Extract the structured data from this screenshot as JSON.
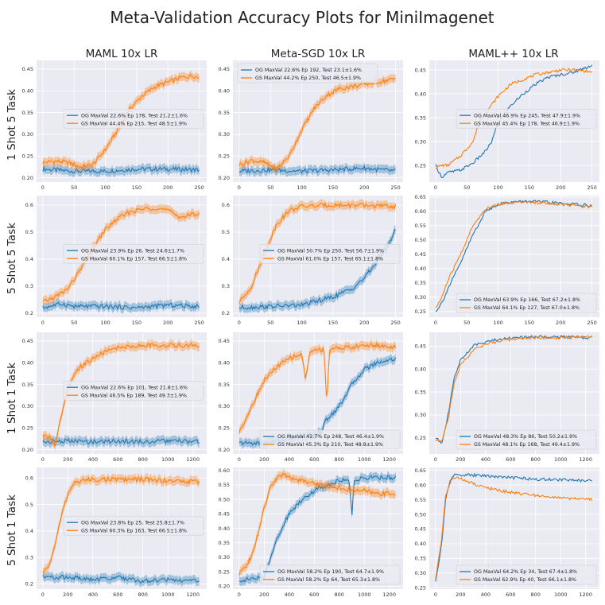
{
  "figure": {
    "suptitle": "Meta-Validation Accuracy Plots for MiniImagenet",
    "columns": [
      "MAML 10x LR",
      "Meta-SGD 10x LR",
      "MAML++ 10x LR"
    ],
    "rows": [
      "1 Shot 5 Task",
      "5 Shot 5 Task",
      "1 Shot 1 Task",
      "5 Shot 1 Task"
    ],
    "colors": {
      "og": "#1f77b4",
      "gs": "#ff7f0e",
      "panel_bg": "#eaeaf2",
      "grid": "#ffffff"
    }
  },
  "chart_data": [
    {
      "type": "line",
      "row": 0,
      "col": 0,
      "xlim": [
        -10,
        262
      ],
      "ylim": [
        0.19,
        0.47
      ],
      "xticks": [
        0,
        50,
        100,
        150,
        200,
        250
      ],
      "yticks": [
        0.2,
        0.25,
        0.3,
        0.35,
        0.4,
        0.45
      ],
      "band": true,
      "legend": "center-right",
      "series": [
        {
          "name": "OG MaxVal 22.6% Ep 178, Test 21.2±1.6%",
          "color": "#1f77b4",
          "x": [
            0,
            50,
            100,
            150,
            200,
            250
          ],
          "y": [
            0.22,
            0.215,
            0.215,
            0.22,
            0.22,
            0.218
          ]
        },
        {
          "name": "GS MaxVal 44.4% Ep 215, Test 48.5±1.9%",
          "color": "#ff7f0e",
          "x": [
            0,
            20,
            40,
            60,
            80,
            100,
            120,
            140,
            160,
            180,
            200,
            220,
            240,
            250
          ],
          "y": [
            0.235,
            0.238,
            0.235,
            0.225,
            0.23,
            0.265,
            0.31,
            0.36,
            0.39,
            0.41,
            0.42,
            0.43,
            0.435,
            0.43
          ]
        }
      ]
    },
    {
      "type": "line",
      "row": 0,
      "col": 1,
      "xlim": [
        -10,
        262
      ],
      "ylim": [
        0.19,
        0.47
      ],
      "xticks": [
        0,
        50,
        100,
        150,
        200,
        250
      ],
      "yticks": [
        0.2,
        0.25,
        0.3,
        0.35,
        0.4,
        0.45
      ],
      "band": true,
      "legend": "top-left",
      "series": [
        {
          "name": "OG MaxVal 22.6% Ep 192, Test 23.1±1.6%",
          "color": "#1f77b4",
          "x": [
            0,
            50,
            100,
            150,
            200,
            250
          ],
          "y": [
            0.215,
            0.218,
            0.215,
            0.218,
            0.222,
            0.215
          ]
        },
        {
          "name": "GS MaxVal 44.2% Ep 250, Test 46.5±1.9%",
          "color": "#ff7f0e",
          "x": [
            0,
            20,
            40,
            60,
            80,
            100,
            120,
            140,
            160,
            180,
            200,
            220,
            240,
            250
          ],
          "y": [
            0.23,
            0.24,
            0.235,
            0.22,
            0.25,
            0.31,
            0.36,
            0.39,
            0.405,
            0.41,
            0.415,
            0.42,
            0.425,
            0.428
          ]
        }
      ]
    },
    {
      "type": "line",
      "row": 0,
      "col": 2,
      "xlim": [
        -10,
        262
      ],
      "ylim": [
        0.215,
        0.47
      ],
      "xticks": [
        0,
        50,
        100,
        150,
        200,
        250
      ],
      "yticks": [
        0.25,
        0.3,
        0.35,
        0.4,
        0.45
      ],
      "band": false,
      "legend": "center-right",
      "series": [
        {
          "name": "OG MaxVal 46.9% Ep 245, Test 47.9±1.9%",
          "color": "#1f77b4",
          "x": [
            0,
            10,
            20,
            40,
            60,
            80,
            90,
            100,
            120,
            140,
            160,
            180,
            200,
            220,
            240,
            250
          ],
          "y": [
            0.25,
            0.225,
            0.235,
            0.24,
            0.255,
            0.28,
            0.3,
            0.34,
            0.375,
            0.4,
            0.42,
            0.435,
            0.44,
            0.445,
            0.455,
            0.46
          ]
        },
        {
          "name": "GS MaxVal 45.4% Ep 178, Test 46.9±1.9%",
          "color": "#ff7f0e",
          "x": [
            0,
            10,
            20,
            40,
            60,
            70,
            80,
            100,
            120,
            140,
            160,
            180,
            200,
            220,
            240,
            250
          ],
          "y": [
            0.245,
            0.25,
            0.25,
            0.27,
            0.3,
            0.34,
            0.36,
            0.395,
            0.42,
            0.43,
            0.44,
            0.445,
            0.45,
            0.45,
            0.448,
            0.445
          ]
        }
      ]
    },
    {
      "type": "line",
      "row": 1,
      "col": 0,
      "xlim": [
        -10,
        262
      ],
      "ylim": [
        0.185,
        0.635
      ],
      "xticks": [
        0,
        50,
        100,
        150,
        200,
        250
      ],
      "yticks": [
        0.2,
        0.3,
        0.4,
        0.5,
        0.6
      ],
      "band": true,
      "legend": "center-right",
      "series": [
        {
          "name": "OG MaxVal 23.9% Ep 26, Test 24.6±1.7%",
          "color": "#1f77b4",
          "x": [
            0,
            30,
            50,
            100,
            150,
            200,
            250
          ],
          "y": [
            0.22,
            0.235,
            0.225,
            0.225,
            0.22,
            0.23,
            0.225
          ]
        },
        {
          "name": "GS MaxVal 60.1% Ep 157, Test 66.5±1.8%",
          "color": "#ff7f0e",
          "x": [
            0,
            20,
            40,
            60,
            80,
            100,
            120,
            140,
            160,
            180,
            200,
            220,
            240,
            250
          ],
          "y": [
            0.24,
            0.26,
            0.29,
            0.36,
            0.44,
            0.51,
            0.55,
            0.575,
            0.585,
            0.59,
            0.58,
            0.555,
            0.565,
            0.57
          ]
        }
      ]
    },
    {
      "type": "line",
      "row": 1,
      "col": 1,
      "xlim": [
        -10,
        262
      ],
      "ylim": [
        0.185,
        0.635
      ],
      "xticks": [
        0,
        50,
        100,
        150,
        200,
        250
      ],
      "yticks": [
        0.2,
        0.3,
        0.4,
        0.5,
        0.6
      ],
      "band": true,
      "legend": "center-right",
      "series": [
        {
          "name": "OG MaxVal 50.7% Ep 250, Test 56.7±1.9%",
          "color": "#1f77b4",
          "x": [
            0,
            50,
            100,
            150,
            180,
            200,
            220,
            240,
            250
          ],
          "y": [
            0.22,
            0.225,
            0.23,
            0.26,
            0.29,
            0.33,
            0.39,
            0.46,
            0.51
          ]
        },
        {
          "name": "GS MaxVal 61.0% Ep 157, Test 65.1±1.8%",
          "color": "#ff7f0e",
          "x": [
            0,
            20,
            40,
            60,
            80,
            100,
            150,
            200,
            250
          ],
          "y": [
            0.24,
            0.3,
            0.42,
            0.53,
            0.58,
            0.595,
            0.6,
            0.598,
            0.595
          ]
        }
      ]
    },
    {
      "type": "line",
      "row": 1,
      "col": 2,
      "xlim": [
        -10,
        262
      ],
      "ylim": [
        0.23,
        0.655
      ],
      "xticks": [
        0,
        50,
        100,
        150,
        200,
        250
      ],
      "yticks": [
        0.25,
        0.3,
        0.35,
        0.4,
        0.45,
        0.5,
        0.55,
        0.6,
        0.65
      ],
      "band": false,
      "legend": "bottom-right",
      "series": [
        {
          "name": "OG MaxVal 63.9% Ep 166, Test 67.2±1.8%",
          "color": "#1f77b4",
          "x": [
            0,
            10,
            20,
            40,
            60,
            80,
            100,
            120,
            150,
            200,
            250
          ],
          "y": [
            0.25,
            0.28,
            0.33,
            0.42,
            0.52,
            0.6,
            0.625,
            0.632,
            0.635,
            0.628,
            0.62
          ]
        },
        {
          "name": "GS MaxVal 64.1% Ep 127, Test 67.0±1.8%",
          "color": "#ff7f0e",
          "x": [
            0,
            10,
            20,
            40,
            60,
            80,
            100,
            120,
            150,
            200,
            250
          ],
          "y": [
            0.26,
            0.3,
            0.36,
            0.45,
            0.55,
            0.61,
            0.625,
            0.63,
            0.632,
            0.625,
            0.615
          ]
        }
      ]
    },
    {
      "type": "line",
      "row": 2,
      "col": 0,
      "xlim": [
        -50,
        1310
      ],
      "ylim": [
        0.19,
        0.47
      ],
      "xticks": [
        0,
        200,
        400,
        600,
        800,
        1000,
        1200
      ],
      "yticks": [
        0.2,
        0.25,
        0.3,
        0.35,
        0.4,
        0.45
      ],
      "band": true,
      "legend": "center-right",
      "series": [
        {
          "name": "OG MaxVal 22.6% Ep 101, Test 21.8±1.6%",
          "color": "#1f77b4",
          "x": [
            0,
            200,
            400,
            600,
            800,
            1000,
            1250
          ],
          "y": [
            0.218,
            0.22,
            0.218,
            0.22,
            0.218,
            0.22,
            0.218
          ]
        },
        {
          "name": "GS MaxVal 46.5% Ep 189, Test 49.3±1.9%",
          "color": "#ff7f0e",
          "x": [
            0,
            50,
            100,
            150,
            200,
            250,
            300,
            400,
            500,
            600,
            800,
            1000,
            1250
          ],
          "y": [
            0.23,
            0.23,
            0.21,
            0.28,
            0.34,
            0.37,
            0.39,
            0.41,
            0.425,
            0.435,
            0.44,
            0.44,
            0.44
          ]
        }
      ]
    },
    {
      "type": "line",
      "row": 2,
      "col": 1,
      "xlim": [
        -50,
        1310
      ],
      "ylim": [
        0.19,
        0.47
      ],
      "xticks": [
        0,
        200,
        400,
        600,
        800,
        1000,
        1200
      ],
      "yticks": [
        0.2,
        0.25,
        0.3,
        0.35,
        0.4,
        0.45
      ],
      "band": true,
      "legend": "bottom-right",
      "series": [
        {
          "name": "OG MaxVal 42.7% Ep 248, Test 46.4±1.9%",
          "color": "#1f77b4",
          "x": [
            0,
            200,
            400,
            600,
            650,
            700,
            800,
            900,
            1000,
            1100,
            1250
          ],
          "y": [
            0.215,
            0.215,
            0.225,
            0.235,
            0.24,
            0.27,
            0.3,
            0.35,
            0.385,
            0.4,
            0.41
          ]
        },
        {
          "name": "GS MaxVal 45.3% Ep 210, Test 48.8±1.9%",
          "color": "#ff7f0e",
          "x": [
            0,
            100,
            200,
            300,
            400,
            500,
            530,
            560,
            600,
            680,
            700,
            720,
            800,
            900,
            1000,
            1100,
            1250
          ],
          "y": [
            0.24,
            0.3,
            0.36,
            0.39,
            0.41,
            0.42,
            0.36,
            0.42,
            0.43,
            0.43,
            0.3,
            0.43,
            0.435,
            0.435,
            0.44,
            0.44,
            0.435
          ]
        }
      ]
    },
    {
      "type": "line",
      "row": 2,
      "col": 2,
      "xlim": [
        -50,
        1310
      ],
      "ylim": [
        0.215,
        0.48
      ],
      "xticks": [
        0,
        200,
        400,
        600,
        800,
        1000,
        1200
      ],
      "yticks": [
        0.25,
        0.3,
        0.35,
        0.4,
        0.45
      ],
      "band": false,
      "legend": "bottom-right",
      "series": [
        {
          "name": "OG MaxVal 48.3% Ep 86, Test 50.2±1.9%",
          "color": "#1f77b4",
          "x": [
            0,
            50,
            100,
            150,
            200,
            300,
            400,
            600,
            800,
            1000,
            1250
          ],
          "y": [
            0.25,
            0.24,
            0.3,
            0.38,
            0.42,
            0.45,
            0.46,
            0.468,
            0.47,
            0.47,
            0.468
          ]
        },
        {
          "name": "GS MaxVal 48.1% Ep 168, Test 49.4±1.9%",
          "color": "#ff7f0e",
          "x": [
            0,
            50,
            100,
            150,
            200,
            300,
            400,
            600,
            800,
            1000,
            1250
          ],
          "y": [
            0.245,
            0.245,
            0.29,
            0.37,
            0.41,
            0.44,
            0.455,
            0.465,
            0.468,
            0.468,
            0.47
          ]
        }
      ]
    },
    {
      "type": "line",
      "row": 3,
      "col": 0,
      "xlim": [
        -50,
        1310
      ],
      "ylim": [
        0.18,
        0.64
      ],
      "xticks": [
        0,
        200,
        400,
        600,
        800,
        1000,
        1200
      ],
      "yticks": [
        0.2,
        0.3,
        0.4,
        0.5,
        0.6
      ],
      "band": true,
      "legend": "center-right",
      "series": [
        {
          "name": "OG MaxVal 23.8% Ep 25, Test 25.8±1.7%",
          "color": "#1f77b4",
          "x": [
            0,
            200,
            400,
            600,
            800,
            1000,
            1250
          ],
          "y": [
            0.225,
            0.225,
            0.215,
            0.225,
            0.21,
            0.215,
            0.21
          ]
        },
        {
          "name": "GS MaxVal 60.3% Ep 163, Test 66.5±1.8%",
          "color": "#ff7f0e",
          "x": [
            0,
            50,
            100,
            150,
            200,
            250,
            300,
            400,
            600,
            800,
            1000,
            1250
          ],
          "y": [
            0.24,
            0.27,
            0.35,
            0.46,
            0.54,
            0.58,
            0.59,
            0.595,
            0.595,
            0.595,
            0.59,
            0.585
          ]
        }
      ]
    },
    {
      "type": "line",
      "row": 3,
      "col": 1,
      "xlim": [
        -50,
        1310
      ],
      "ylim": [
        0.19,
        0.61
      ],
      "xticks": [
        0,
        200,
        400,
        600,
        800,
        1000,
        1200
      ],
      "yticks": [
        0.2,
        0.25,
        0.3,
        0.35,
        0.4,
        0.45,
        0.5,
        0.55,
        0.6
      ],
      "band": true,
      "legend": "bottom-right",
      "series": [
        {
          "name": "OG MaxVal 58.2% Ep 190, Test 64.7±1.9%",
          "color": "#1f77b4",
          "x": [
            0,
            100,
            200,
            250,
            300,
            350,
            400,
            500,
            600,
            700,
            800,
            880,
            900,
            920,
            1000,
            1100,
            1250
          ],
          "y": [
            0.22,
            0.225,
            0.23,
            0.3,
            0.36,
            0.41,
            0.45,
            0.5,
            0.53,
            0.55,
            0.565,
            0.57,
            0.44,
            0.565,
            0.575,
            0.575,
            0.575
          ]
        },
        {
          "name": "GS MaxVal 58.2% Ep 64, Test 65.3±1.8%",
          "color": "#ff7f0e",
          "x": [
            0,
            100,
            150,
            200,
            250,
            300,
            350,
            400,
            500,
            600,
            700,
            800,
            900,
            1000,
            1100,
            1250
          ],
          "y": [
            0.24,
            0.3,
            0.38,
            0.47,
            0.54,
            0.575,
            0.585,
            0.575,
            0.565,
            0.555,
            0.545,
            0.54,
            0.53,
            0.53,
            0.52,
            0.52
          ]
        }
      ]
    },
    {
      "type": "line",
      "row": 3,
      "col": 2,
      "xlim": [
        -50,
        1310
      ],
      "ylim": [
        0.245,
        0.66
      ],
      "xticks": [
        0,
        200,
        400,
        600,
        800,
        1000,
        1200
      ],
      "yticks": [
        0.25,
        0.3,
        0.35,
        0.4,
        0.45,
        0.5,
        0.55,
        0.6,
        0.65
      ],
      "band": false,
      "legend": "bottom-right",
      "series": [
        {
          "name": "OG MaxVal 64.2% Ep 34, Test 67.4±1.8%",
          "color": "#1f77b4",
          "x": [
            0,
            50,
            80,
            120,
            150,
            200,
            400,
            600,
            800,
            1000,
            1250
          ],
          "y": [
            0.27,
            0.4,
            0.55,
            0.62,
            0.635,
            0.635,
            0.632,
            0.625,
            0.62,
            0.618,
            0.615
          ]
        },
        {
          "name": "GS MaxVal 62.9% Ep 40, Test 66.1±1.8%",
          "color": "#ff7f0e",
          "x": [
            0,
            50,
            80,
            120,
            150,
            200,
            300,
            400,
            600,
            800,
            1000,
            1250
          ],
          "y": [
            0.28,
            0.42,
            0.56,
            0.615,
            0.625,
            0.62,
            0.605,
            0.59,
            0.575,
            0.565,
            0.555,
            0.55
          ]
        }
      ]
    }
  ]
}
